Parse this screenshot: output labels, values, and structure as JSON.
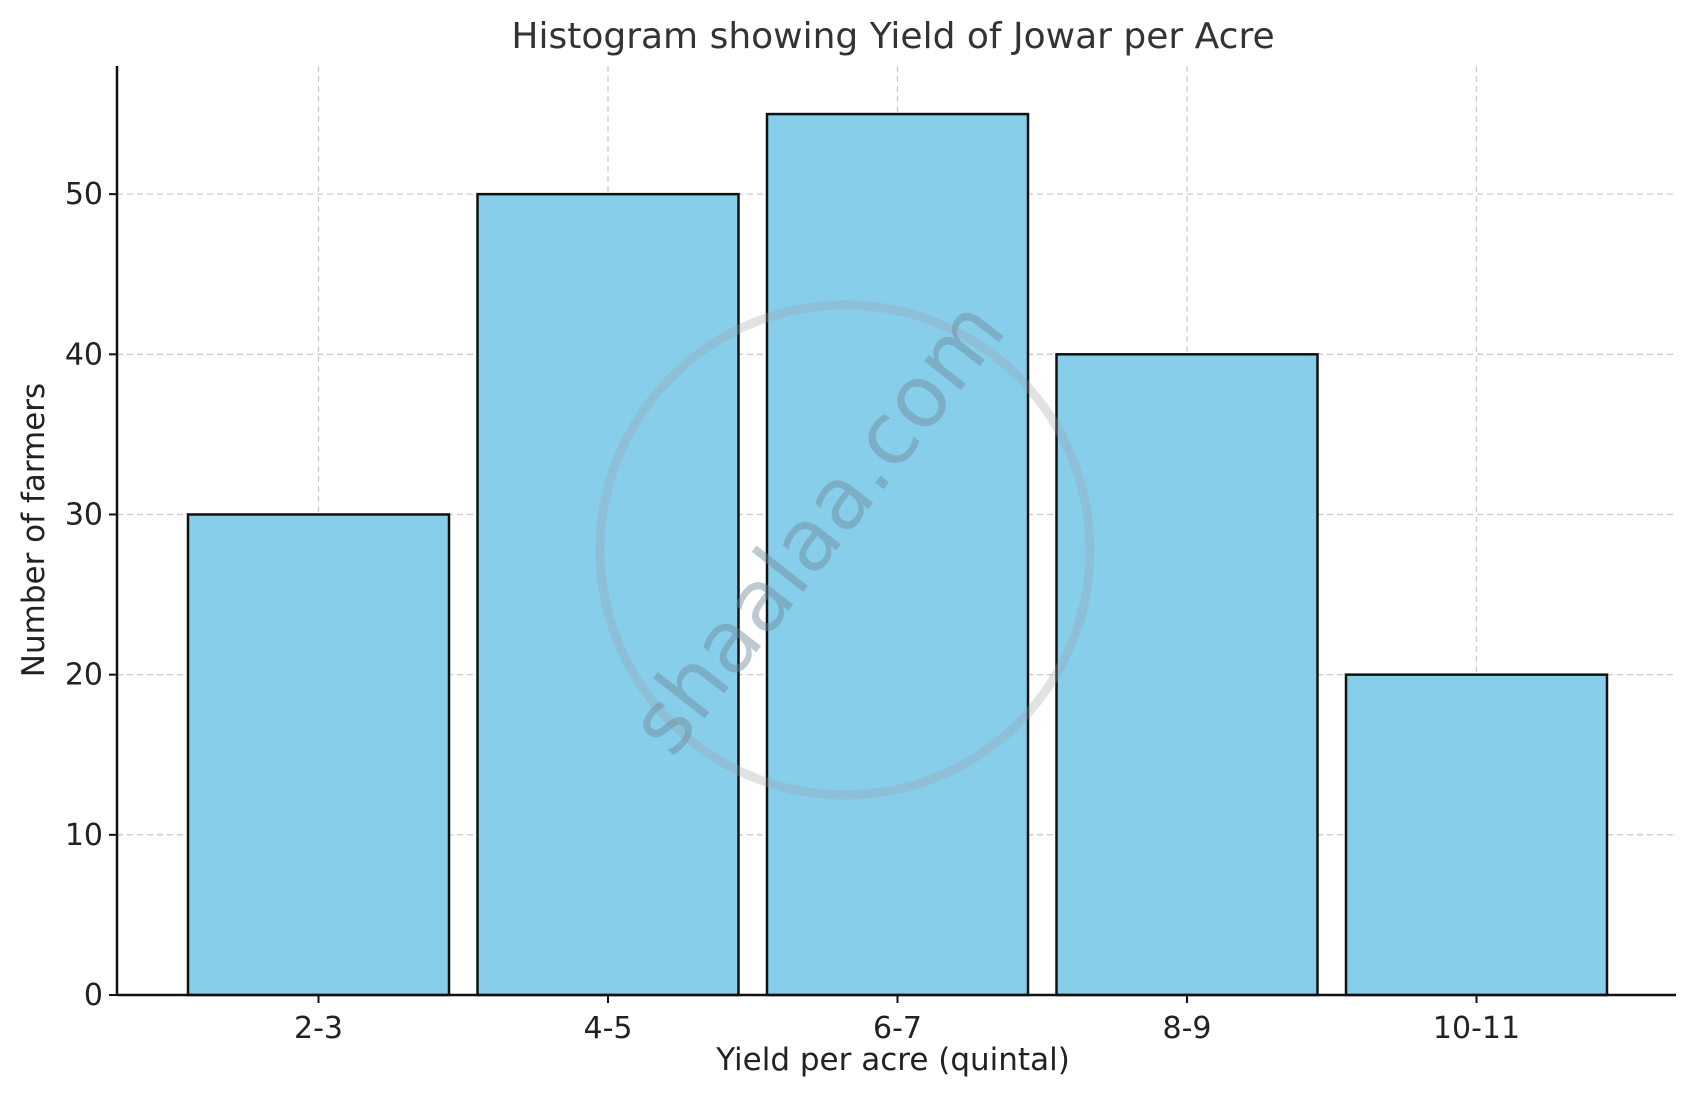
{
  "chart_data": {
    "type": "bar",
    "title": "Histogram showing Yield of Jowar per Acre",
    "xlabel": "Yield per acre (quintal)",
    "ylabel": "Number of farmers",
    "categories": [
      "2-3",
      "4-5",
      "6-7",
      "8-9",
      "10-11"
    ],
    "values": [
      30,
      50,
      55,
      40,
      20
    ],
    "ylim": [
      0,
      58
    ],
    "yticks": [
      0,
      10,
      20,
      30,
      40,
      50
    ],
    "grid": true,
    "bar_color": "#87ceeb",
    "edge_color": "#000000"
  },
  "watermark": "shaalaa.com"
}
